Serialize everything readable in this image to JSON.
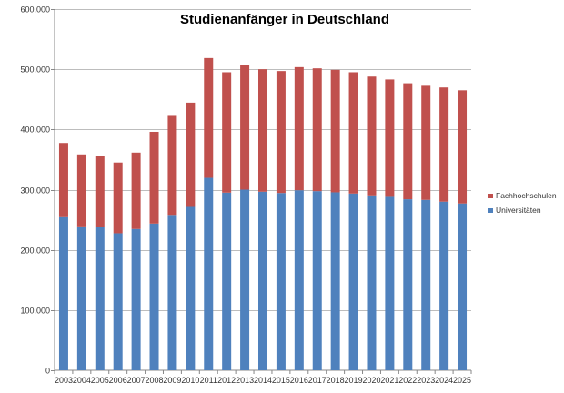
{
  "chart_data": {
    "type": "bar",
    "stacked": true,
    "title": "Studienanfänger in Deutschland",
    "xlabel": "",
    "ylabel": "",
    "ylim": [
      0,
      600000
    ],
    "yticks": [
      0,
      100000,
      200000,
      300000,
      400000,
      500000,
      600000
    ],
    "ytick_labels": [
      "0",
      "100.000",
      "200.000",
      "300.000",
      "400.000",
      "500.000",
      "600.000"
    ],
    "grid": true,
    "legend_position": "right",
    "categories": [
      "2003",
      "2004",
      "2005",
      "2006",
      "2007",
      "2008",
      "2009",
      "2010",
      "2011",
      "2012",
      "2013",
      "2014",
      "2015",
      "2016",
      "2017",
      "2018",
      "2019",
      "2020",
      "2021",
      "2022",
      "2023",
      "2024",
      "2025"
    ],
    "series": [
      {
        "name": "Universitäten",
        "color": "#4F81BD",
        "values": [
          255700,
          239000,
          237600,
          227500,
          234600,
          243600,
          258000,
          272800,
          319600,
          295000,
          300000,
          296500,
          294400,
          299000,
          297500,
          295500,
          293500,
          290500,
          288000,
          284000,
          283000,
          280000,
          277000
        ]
      },
      {
        "name": "Fachhochschulen",
        "color": "#C0504D",
        "values": [
          121800,
          119500,
          118400,
          117500,
          126900,
          152400,
          166000,
          171700,
          199000,
          200000,
          206500,
          203500,
          202600,
          204500,
          204000,
          203500,
          201500,
          197300,
          195000,
          192700,
          191000,
          189700,
          188000
        ]
      }
    ],
    "legend_order": [
      "Fachhochschulen",
      "Universitäten"
    ]
  }
}
